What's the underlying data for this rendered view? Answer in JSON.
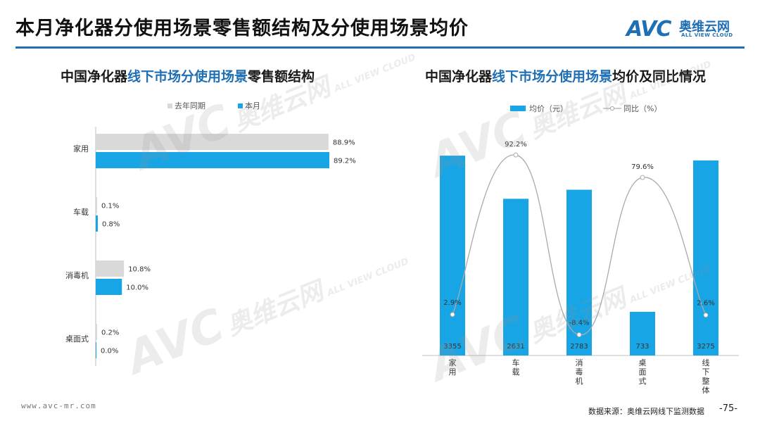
{
  "header": {
    "title": "本月净化器分使用场景零售额结构及分使用场景均价",
    "logo_mark": "AVC",
    "logo_cn": "奥维云网",
    "logo_en": "ALL VIEW CLOUD",
    "accent_color": "#1f6fb5"
  },
  "watermark": {
    "mark": "AVC",
    "cn": "奥维云网",
    "en": "ALL VIEW CLOUD"
  },
  "left_chart": {
    "subtitle_pre": "中国净化器",
    "subtitle_hl": "线下市场分使用场景",
    "subtitle_post": "零售额结构"
  },
  "right_chart": {
    "subtitle_pre": "中国净化器",
    "subtitle_hl": "线下市场分使用场景",
    "subtitle_post": "均价及同比情况"
  },
  "chart_data": [
    {
      "type": "bar",
      "orientation": "horizontal",
      "categories": [
        "家用",
        "车载",
        "消毒机",
        "桌面式"
      ],
      "series": [
        {
          "name": "去年同期",
          "values": [
            88.9,
            0.1,
            10.8,
            0.2
          ],
          "labels": [
            "88.9%",
            "0.1%",
            "10.8%",
            "0.2%"
          ],
          "color": "#d9d9d9"
        },
        {
          "name": "本月",
          "values": [
            89.2,
            0.8,
            10.0,
            0.0
          ],
          "labels": [
            "89.2%",
            "0.8%",
            "10.0%",
            "0.0%"
          ],
          "color": "#18a5e5"
        }
      ],
      "xlim": [
        0,
        100
      ],
      "legend": "top"
    },
    {
      "type": "bar+line",
      "categories": [
        "家用",
        "车载",
        "消毒机",
        "桌面式",
        "线下整体"
      ],
      "series": [
        {
          "name": "均价（元）",
          "type": "bar",
          "values": [
            3355,
            2631,
            2783,
            733,
            3275
          ],
          "color": "#18a5e5"
        },
        {
          "name": "同比（%）",
          "type": "line",
          "values": [
            2.9,
            92.2,
            -8.4,
            79.6,
            2.6
          ],
          "labels": [
            "2.9%",
            "92.2%",
            "-8.4%",
            "79.6%",
            "2.6%"
          ],
          "color": "#aaaaaa"
        }
      ],
      "bar_ylim": [
        0,
        3900
      ],
      "line_ylim": [
        -20,
        110
      ],
      "legend": "top"
    }
  ],
  "footer": {
    "url": "www.avc-mr.com",
    "source": "数据来源：奥维云网线下监测数据",
    "page": "-75-"
  }
}
